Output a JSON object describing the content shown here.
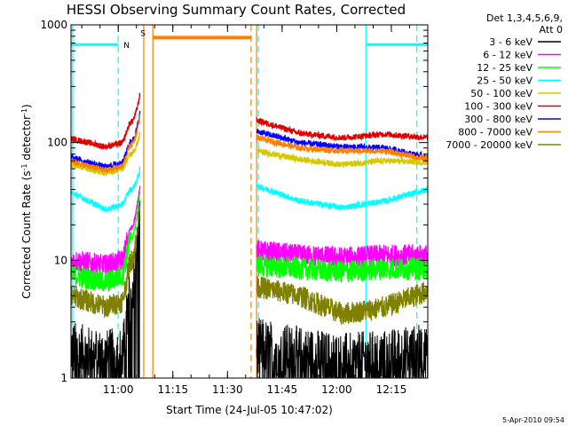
{
  "chart_data": {
    "type": "line",
    "title": "HESSI Observing Summary Count Rates, Corrected",
    "xlabel": "Start Time (24-Jul-05 10:47:02)",
    "ylabel_main": "Corrected Count Rate (s",
    "ylabel_sup1": "-1",
    "ylabel_mid": " detector",
    "ylabel_sup2": "-1",
    "ylabel_end": ")",
    "yscale": "log",
    "ylim": [
      1,
      1000
    ],
    "xlim": [
      "10:47:02",
      "12:25:00"
    ],
    "x_ticks": [
      "11:00",
      "11:15",
      "11:30",
      "11:45",
      "12:00",
      "12:15"
    ],
    "y_ticks": [
      "1",
      "10",
      "100",
      "1000"
    ],
    "legend_header": [
      "Det 1,3,4,5,6,9,",
      "Att 0"
    ],
    "legend_placement": "right",
    "timestamp": "5-Apr-2010 09:54",
    "flag_labels": {
      "night": "N",
      "saa": "S"
    },
    "series": [
      {
        "name": "3 - 6 keV",
        "color": "#000000"
      },
      {
        "name": "6 - 12 keV",
        "color": "#ff00ff"
      },
      {
        "name": "12 - 25 keV",
        "color": "#00ff00"
      },
      {
        "name": "25 - 50 keV",
        "color": "#00ffff"
      },
      {
        "name": "50 - 100 keV",
        "color": "#d4c800"
      },
      {
        "name": "100 - 300 keV",
        "color": "#e00000"
      },
      {
        "name": "300 - 800 keV",
        "color": "#0000ff"
      },
      {
        "name": "800 - 7000 keV",
        "color": "#ff8000"
      },
      {
        "name": "7000 - 20000 keV",
        "color": "#808000"
      }
    ],
    "profiles": {
      "seg1_start": "10:47:02",
      "seg1_end": "11:06:00",
      "seg2_start": "11:38:00",
      "seg2_end": "12:25:00",
      "values": [
        {
          "seg1": [
            1.8,
            1.6,
            1.5,
            1.6,
            30
          ],
          "seg2": [
            1.9,
            1.6,
            1.4,
            1.5,
            1.7
          ]
        },
        {
          "seg1": [
            10,
            9.5,
            9,
            10,
            45
          ],
          "seg2": [
            12,
            11,
            10.5,
            11,
            11
          ]
        },
        {
          "seg1": [
            7.5,
            7,
            6.5,
            7.5,
            40
          ],
          "seg2": [
            9,
            8.5,
            8,
            8.5,
            8.5
          ]
        },
        {
          "seg1": [
            38,
            32,
            27,
            30,
            60
          ],
          "seg2": [
            43,
            32,
            28,
            32,
            40
          ]
        },
        {
          "seg1": [
            65,
            60,
            55,
            60,
            120
          ],
          "seg2": [
            85,
            72,
            65,
            70,
            68
          ]
        },
        {
          "seg1": [
            108,
            100,
            92,
            100,
            260
          ],
          "seg2": [
            155,
            120,
            110,
            118,
            110
          ]
        },
        {
          "seg1": [
            75,
            68,
            62,
            68,
            180
          ],
          "seg2": [
            125,
            100,
            92,
            90,
            75
          ]
        },
        {
          "seg1": [
            70,
            63,
            58,
            63,
            170
          ],
          "seg2": [
            110,
            90,
            85,
            85,
            72
          ]
        },
        {
          "seg1": [
            5,
            4.5,
            4,
            4.5,
            30
          ],
          "seg2": [
            6,
            5,
            3.5,
            4,
            5.5
          ]
        }
      ]
    },
    "flags": {
      "night_level": 680,
      "saa_level": 780,
      "night_intervals": [
        [
          "10:47:02",
          "11:00:00"
        ],
        [
          "12:08:00",
          "12:25:00"
        ]
      ],
      "saa_interval": [
        "11:09:30",
        "11:36:30"
      ]
    },
    "markers": [
      {
        "time": "10:47:30",
        "style": "solid",
        "color": "#00ffff"
      },
      {
        "time": "11:00:00",
        "style": "dashed",
        "color": "#00ffff"
      },
      {
        "time": "11:07:00",
        "style": "solid",
        "color": "#ff8000"
      },
      {
        "time": "11:09:30",
        "style": "solid",
        "color": "#ff8000"
      },
      {
        "time": "11:36:30",
        "style": "dashed",
        "color": "#ff8000"
      },
      {
        "time": "11:38:00",
        "style": "solid",
        "color": "#ff8000"
      },
      {
        "time": "11:38:30",
        "style": "dashed",
        "color": "#00ffff"
      },
      {
        "time": "12:08:00",
        "style": "solid",
        "color": "#00ffff"
      },
      {
        "time": "12:22:00",
        "style": "dashed",
        "color": "#00ffff"
      }
    ]
  }
}
